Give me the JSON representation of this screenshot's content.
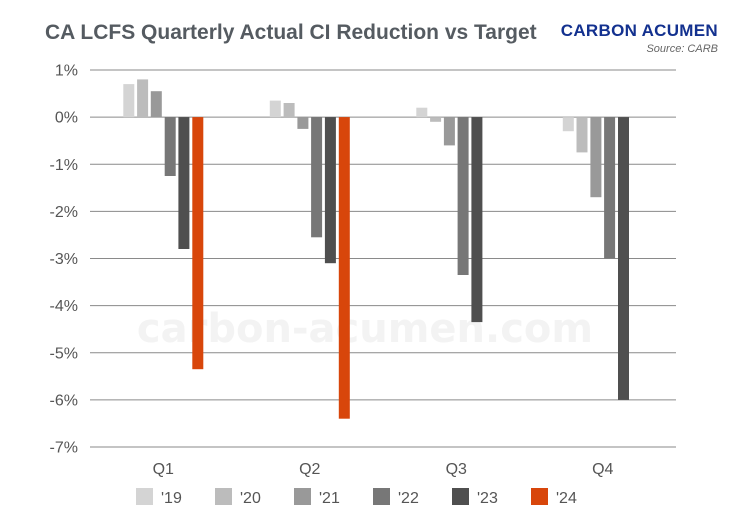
{
  "header": {
    "title": "CA LCFS Quarterly Actual CI Reduction vs Target",
    "brand": "CARBON ACUMEN",
    "source": "Source: CARB"
  },
  "watermark": "carbon-acumen.com",
  "chart_data": {
    "type": "bar",
    "title": "CA LCFS Quarterly Actual CI Reduction vs Target",
    "xlabel": "",
    "ylabel": "",
    "ylim": [
      -7,
      1
    ],
    "yticks": [
      1,
      0,
      -1,
      -2,
      -3,
      -4,
      -5,
      -6,
      -7
    ],
    "ytick_labels": [
      "1%",
      "0%",
      "-1%",
      "-2%",
      "-3%",
      "-4%",
      "-5%",
      "-6%",
      "-7%"
    ],
    "unit": "%",
    "grid": true,
    "legend_position": "bottom",
    "categories": [
      "Q1",
      "Q2",
      "Q3",
      "Q4"
    ],
    "series": [
      {
        "name": "'19",
        "color": "#d4d4d4",
        "values": [
          0.7,
          0.35,
          0.2,
          -0.3
        ]
      },
      {
        "name": "'20",
        "color": "#bcbcbc",
        "values": [
          0.8,
          0.3,
          -0.1,
          -0.75
        ]
      },
      {
        "name": "'21",
        "color": "#999999",
        "values": [
          0.55,
          -0.25,
          -0.6,
          -1.7
        ]
      },
      {
        "name": "'22",
        "color": "#777777",
        "values": [
          -1.25,
          -2.55,
          -3.35,
          -3.0
        ]
      },
      {
        "name": "'23",
        "color": "#4f4f4f",
        "values": [
          -2.8,
          -3.1,
          -4.35,
          -6.0
        ]
      },
      {
        "name": "'24",
        "color": "#d8460b",
        "values": [
          -5.35,
          -6.4,
          null,
          null
        ]
      }
    ]
  }
}
